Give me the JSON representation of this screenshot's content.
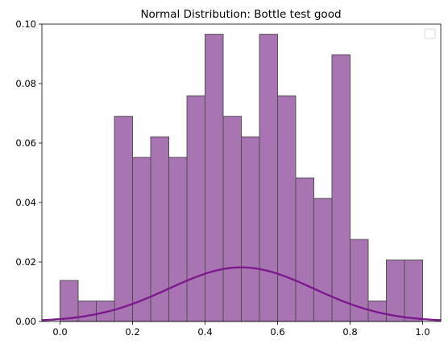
{
  "chart_data": {
    "type": "bar",
    "title": "Normal Distribution: Bottle test good",
    "xlabel": "",
    "ylabel": "",
    "xlim": [
      -0.05,
      1.05
    ],
    "ylim": [
      0,
      0.1
    ],
    "xticks": [
      "0.0",
      "0.2",
      "0.4",
      "0.6",
      "0.8",
      "1.0"
    ],
    "yticks": [
      "0.00",
      "0.02",
      "0.04",
      "0.06",
      "0.08",
      "0.10"
    ],
    "bin_edges": [
      0.0,
      0.05,
      0.1,
      0.15,
      0.2,
      0.25,
      0.3,
      0.35,
      0.4,
      0.45,
      0.5,
      0.55,
      0.6,
      0.65,
      0.7,
      0.75,
      0.8,
      0.85,
      0.9,
      0.95,
      1.0
    ],
    "values": [
      0.0138,
      0.0069,
      0.0069,
      0.069,
      0.0552,
      0.0621,
      0.0552,
      0.0759,
      0.0966,
      0.069,
      0.0621,
      0.0966,
      0.0759,
      0.0483,
      0.0414,
      0.0897,
      0.0276,
      0.0069,
      0.0207,
      0.0207
    ],
    "curve": {
      "type": "line",
      "shape": "normal",
      "mean": 0.5,
      "peak": 0.0182,
      "x_range": [
        -0.05,
        1.05
      ],
      "color": "#7b1a8c"
    },
    "legend": {
      "position": "top-right",
      "entries": []
    },
    "grid": false,
    "colors": {
      "bar_fill": "#a974b2",
      "bar_edge": "#4a4a4a",
      "curve": "#7b1a8c"
    }
  }
}
